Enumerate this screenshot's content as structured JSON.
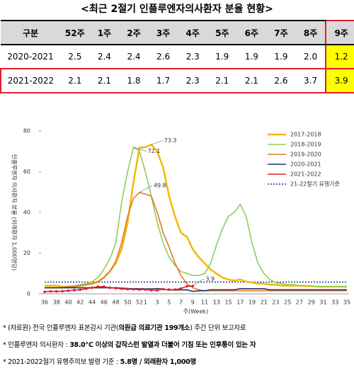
{
  "title": "<최근 2절기 인플루엔자의사환자 분율 현황>",
  "table": {
    "header": [
      "구분",
      "52주",
      "1주",
      "2주",
      "3주",
      "4주",
      "5주",
      "6주",
      "7주",
      "8주",
      "9주"
    ],
    "rows": [
      [
        "2020-2021",
        "2.5",
        "2.4",
        "2.4",
        "2.6",
        "2.3",
        "1.9",
        "1.9",
        "1.9",
        "2.0",
        "1.2"
      ],
      [
        "2021-2022",
        "2.1",
        "2.1",
        "1.8",
        "1.7",
        "2.3",
        "2.1",
        "2.1",
        "2.6",
        "3.7",
        "3.9"
      ]
    ]
  },
  "chart_data": {
    "type": "line",
    "y_label": "인플루엔자 의사환자 분율 (외래환자 1,000명당)",
    "x_label": "주(Week)",
    "categories": [
      "36",
      null,
      "38",
      null,
      "40",
      null,
      "42",
      null,
      "44",
      null,
      "46",
      null,
      "48",
      null,
      "50",
      null,
      "52",
      "1",
      null,
      "3",
      null,
      "5",
      null,
      "7",
      null,
      "9",
      null,
      "11",
      null,
      "13",
      null,
      "15",
      null,
      "17",
      null,
      "19",
      null,
      "21",
      null,
      "23",
      null,
      "25",
      null,
      "27",
      null,
      "29",
      null,
      "31",
      null,
      "33",
      null,
      "35"
    ],
    "ylim": [
      0,
      80
    ],
    "yticks": [
      0,
      20,
      40,
      60,
      80
    ],
    "series": [
      {
        "name": "2017-2018",
        "color": "#f5b800",
        "values": [
          4,
          4,
          4,
          3.5,
          3.5,
          3.8,
          4,
          4.5,
          5,
          6,
          8,
          11,
          15,
          22,
          35,
          55,
          71.8,
          72,
          73.3,
          70,
          62,
          48,
          38,
          30,
          28,
          22,
          18,
          15,
          12,
          10,
          8,
          7,
          6.5,
          7,
          6,
          5.5,
          5,
          5,
          4.5,
          4.5,
          4,
          4,
          4,
          4,
          3.8,
          3.8,
          3.5,
          3.5,
          3.5,
          3.5,
          3.5,
          3.5
        ]
      },
      {
        "name": "2018-2019",
        "color": "#8fce5a",
        "values": [
          3,
          3,
          3,
          3,
          3.5,
          4,
          4.5,
          5,
          6,
          8,
          12,
          17,
          25,
          45,
          60,
          72.1,
          70,
          60,
          48,
          35,
          25,
          18,
          14,
          11,
          10,
          9,
          9,
          10,
          15,
          24,
          32,
          38,
          40,
          44,
          38,
          25,
          15,
          10,
          7,
          5.5,
          5,
          4.5,
          4.5,
          4,
          4,
          4,
          3.5,
          3.5,
          3.5,
          3.5,
          3.5,
          3.5
        ]
      },
      {
        "name": "2019-2020",
        "color": "#e07b28",
        "values": [
          3,
          3,
          3,
          3,
          3.5,
          3.5,
          4,
          4.5,
          5,
          6,
          8,
          11,
          16,
          25,
          38,
          47,
          49.8,
          49,
          48,
          40,
          30,
          23,
          15,
          9,
          5,
          3,
          2,
          1.5,
          1.5,
          1.5,
          1.5,
          1.5,
          1.5,
          1.5,
          1.5,
          1.5,
          1.5,
          1.5,
          1.5,
          1.5,
          1.5,
          1.5,
          1.5,
          1.5,
          1.5,
          1.5,
          1.5,
          1.5,
          1.5,
          1.5,
          1.5,
          1.5
        ]
      },
      {
        "name": "2020-2021",
        "color": "#1f2f6b",
        "values": [
          3,
          3,
          3,
          3,
          3,
          3,
          3,
          3,
          3,
          3,
          3,
          3,
          3,
          2.8,
          2.6,
          2.5,
          2.5,
          2.4,
          2.4,
          2.6,
          2.3,
          1.9,
          1.9,
          1.9,
          2,
          1.2,
          1.5,
          1.5,
          2,
          2,
          2,
          2,
          2,
          2.5,
          2.5,
          2.5,
          2.5,
          2.5,
          2,
          2,
          2,
          2,
          2,
          2,
          2,
          2,
          2,
          2,
          2,
          2,
          2,
          2
        ]
      },
      {
        "name": "2021-2022",
        "color": "#e0202a",
        "markers": true,
        "values": [
          1,
          1.2,
          1.2,
          1.3,
          1.5,
          1.8,
          2,
          2.5,
          3,
          3.5,
          3.5,
          3,
          2.8,
          2.5,
          2.3,
          2.2,
          2.1,
          2.1,
          1.8,
          1.7,
          2.3,
          2.1,
          2.1,
          2.6,
          3.7,
          3.9,
          null,
          null,
          null,
          null,
          null,
          null,
          null,
          null,
          null,
          null,
          null,
          null,
          null,
          null,
          null,
          null,
          null,
          null,
          null,
          null,
          null,
          null,
          null,
          null,
          null,
          null
        ]
      }
    ],
    "reference": {
      "name": "21-22절기 유행기준",
      "value": 5.8,
      "color": "#1f3c88"
    },
    "annotations": [
      73.3,
      72.1,
      49.8,
      3.9
    ]
  },
  "notes": [
    [
      "* (자료원) 전국 인플루엔자 표본감시 기관(",
      "의원급 의료기관 199개소",
      ") 주간 단위 보고자료"
    ],
    [
      "* 인플루엔자 의사환자 : ",
      "38.0℃ 이상의 갑작스런 발열과 더불어 기침 또는 인후통이 있는 자"
    ],
    [
      "* 2021-2022절기 유행주의보 발령 기준 : ",
      "5.8명 / 외래환자 1,000명"
    ]
  ]
}
